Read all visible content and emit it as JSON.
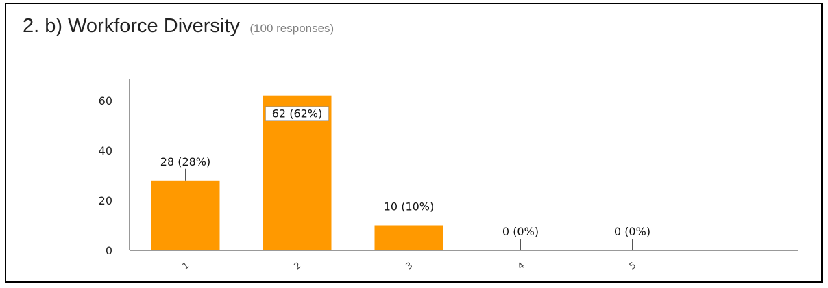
{
  "chart_data": {
    "type": "bar",
    "title": "2. b) Workforce Diversity",
    "subtitle": "(100 responses)",
    "categories": [
      "1",
      "2",
      "3",
      "4",
      "5"
    ],
    "values": [
      28,
      62,
      10,
      0,
      0
    ],
    "data_labels": [
      "28 (28%)",
      "62 (62%)",
      "10 (10%)",
      "0 (0%)",
      "0 (0%)"
    ],
    "yticks": [
      "0",
      "20",
      "40",
      "60"
    ],
    "ylim": [
      0,
      68
    ],
    "bar_color": "#ff9900",
    "grid": false,
    "legend": "none",
    "xlabel": "",
    "ylabel": ""
  }
}
